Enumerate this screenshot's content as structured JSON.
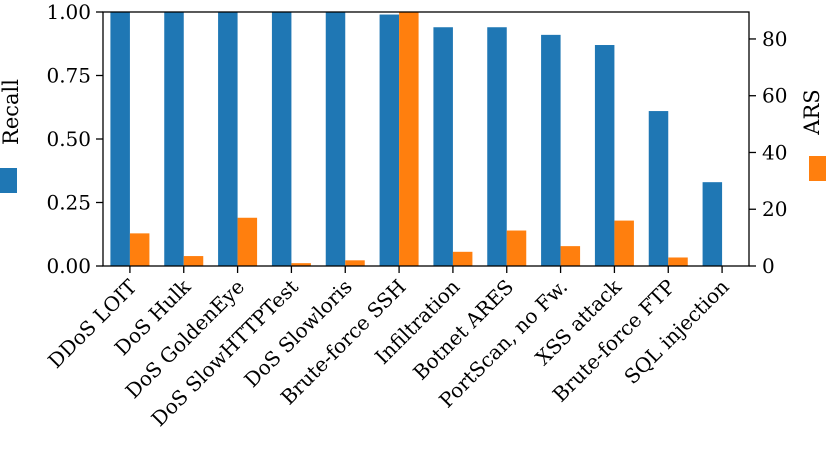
{
  "chart_data": {
    "type": "bar",
    "categories": [
      "DDoS LOIT",
      "DoS Hulk",
      "DoS GoldenEye",
      "DoS SlowHTTPTest",
      "DoS Slowloris",
      "Brute-force SSH",
      "Infiltration",
      "Botnet ARES",
      "PortScan, no Fw.",
      "XSS attack",
      "Brute-force FTP",
      "SQL injection"
    ],
    "series": [
      {
        "name": "Recall",
        "axis": "left",
        "color": "#1f77b4",
        "values": [
          1.0,
          1.0,
          1.0,
          1.0,
          1.0,
          0.99,
          0.94,
          0.94,
          0.91,
          0.87,
          0.61,
          0.33
        ]
      },
      {
        "name": "ARS",
        "axis": "right",
        "color": "#ff7f0e",
        "values": [
          11.5,
          3.5,
          17,
          1,
          2,
          89.5,
          5,
          12.5,
          7,
          16,
          3,
          0
        ]
      }
    ],
    "ylabel": "Recall",
    "ylim": [
      0,
      1.0
    ],
    "yticks": [
      "0.00",
      "0.25",
      "0.50",
      "0.75",
      "1.00"
    ],
    "y2label": "ARS",
    "y2lim": [
      0,
      89.5
    ],
    "y2ticks": [
      "0",
      "20",
      "40",
      "60",
      "80"
    ],
    "grid": false
  }
}
